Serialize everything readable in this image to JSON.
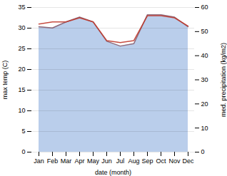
{
  "chart_data": {
    "type": "line",
    "categories": [
      "Jan",
      "Feb",
      "Mar",
      "Apr",
      "May",
      "Jun",
      "Jul",
      "Aug",
      "Sep",
      "Oct",
      "Nov",
      "Dec"
    ],
    "xlabel": "date (month)",
    "ylabel": "max temp (C)",
    "y2label": "med. precipitation (kg/m2)",
    "ylim": [
      0,
      35
    ],
    "yticks": [
      0,
      5,
      10,
      15,
      20,
      25,
      30,
      35
    ],
    "y2lim": [
      0,
      60
    ],
    "y2ticks": [
      0,
      10,
      20,
      30,
      40,
      50,
      60
    ],
    "grid": true,
    "series": [
      {
        "type": "area",
        "axis": "y2",
        "color": "#aec6e8",
        "values": [
          52.0,
          51.5,
          54.0,
          56.0,
          54.0,
          46.0,
          44.0,
          45.0,
          57.0,
          57.0,
          56.0,
          52.0
        ]
      },
      {
        "type": "line",
        "axis": "y2",
        "color": "#8b6070",
        "values": [
          52.0,
          51.5,
          54.0,
          56.0,
          54.0,
          46.0,
          44.0,
          45.0,
          57.0,
          57.0,
          56.0,
          52.0
        ]
      },
      {
        "type": "line",
        "color": "#c0392b",
        "values": [
          31.0,
          31.5,
          31.5,
          32.5,
          31.5,
          27.0,
          26.5,
          27.0,
          33.0,
          33.0,
          32.5,
          30.5
        ]
      }
    ]
  }
}
